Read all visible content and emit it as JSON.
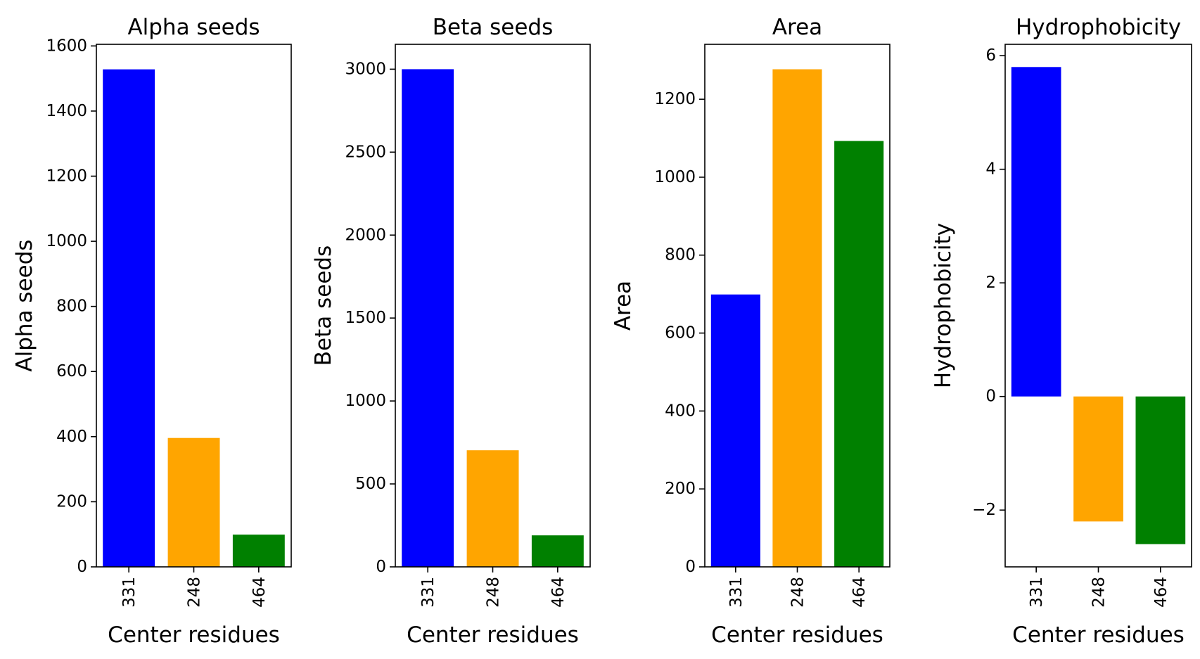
{
  "colors": {
    "bar_colors": [
      "#0000ff",
      "#ffa500",
      "#008000"
    ],
    "axis": "#000000",
    "background": "#ffffff"
  },
  "chart_data": [
    {
      "type": "bar",
      "title": "Alpha seeds",
      "xlabel": "Center residues",
      "ylabel": "Alpha seeds",
      "categories": [
        "331",
        "248",
        "464"
      ],
      "values": [
        1528,
        396,
        99
      ],
      "ylim": [
        0,
        1605
      ],
      "yticks": [
        0,
        200,
        400,
        600,
        800,
        1000,
        1200,
        1400,
        1600
      ],
      "ytick_labels": [
        "0",
        "200",
        "400",
        "600",
        "800",
        "1000",
        "1200",
        "1400",
        "1600"
      ],
      "grid": false,
      "legend": "none"
    },
    {
      "type": "bar",
      "title": "Beta seeds",
      "xlabel": "Center residues",
      "ylabel": "Beta seeds",
      "categories": [
        "331",
        "248",
        "464"
      ],
      "values": [
        3000,
        703,
        190
      ],
      "ylim": [
        0,
        3150
      ],
      "yticks": [
        0,
        500,
        1000,
        1500,
        2000,
        2500,
        3000
      ],
      "ytick_labels": [
        "0",
        "500",
        "1000",
        "1500",
        "2000",
        "2500",
        "3000"
      ],
      "grid": false,
      "legend": "none"
    },
    {
      "type": "bar",
      "title": "Area",
      "xlabel": "Center residues",
      "ylabel": "Area",
      "categories": [
        "331",
        "248",
        "464"
      ],
      "values": [
        699,
        1277,
        1093
      ],
      "ylim": [
        0,
        1341
      ],
      "yticks": [
        0,
        200,
        400,
        600,
        800,
        1000,
        1200
      ],
      "ytick_labels": [
        "0",
        "200",
        "400",
        "600",
        "800",
        "1000",
        "1200"
      ],
      "grid": false,
      "legend": "none"
    },
    {
      "type": "bar",
      "title": "Hydrophobicity",
      "xlabel": "Center residues",
      "ylabel": "Hydrophobicity",
      "categories": [
        "331",
        "248",
        "464"
      ],
      "values": [
        5.8,
        -2.2,
        -2.6
      ],
      "ylim": [
        -3.0,
        6.2
      ],
      "yticks": [
        -2,
        0,
        2,
        4,
        6
      ],
      "ytick_labels": [
        "−2",
        "0",
        "2",
        "4",
        "6"
      ],
      "grid": false,
      "legend": "none"
    }
  ]
}
